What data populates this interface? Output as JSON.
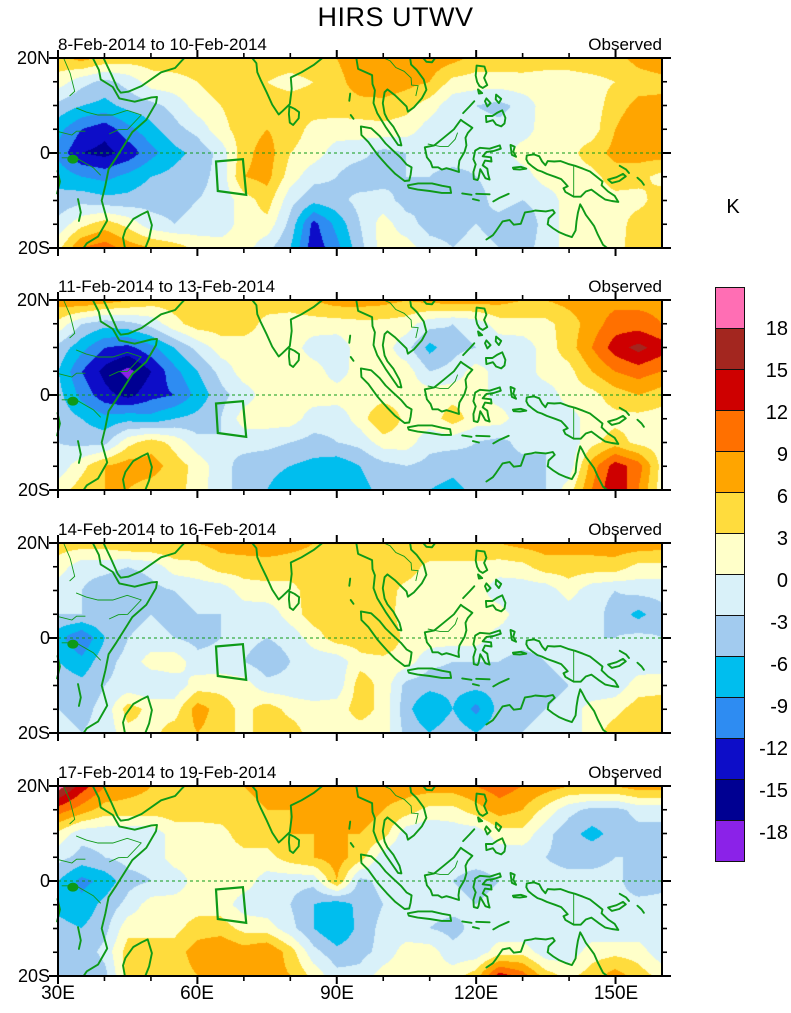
{
  "title": "HIRS UTWV",
  "panels": [
    {
      "period": "8-Feb-2014 to 10-Feb-2014",
      "source": "Observed"
    },
    {
      "period": "11-Feb-2014 to 13-Feb-2014",
      "source": "Observed"
    },
    {
      "period": "14-Feb-2014 to 16-Feb-2014",
      "source": "Observed"
    },
    {
      "period": "17-Feb-2014 to 19-Feb-2014",
      "source": "Observed"
    }
  ],
  "axes": {
    "lat_ticks": [
      "20N",
      "0",
      "20S"
    ],
    "lon_ticks": [
      "30E",
      "60E",
      "90E",
      "120E",
      "150E"
    ],
    "lon_range": [
      30,
      160
    ],
    "lat_range": [
      -20,
      20
    ]
  },
  "colorbar": {
    "unit": "K",
    "tick_labels": [
      "18",
      "15",
      "12",
      "9",
      "6",
      "3",
      "0",
      "-3",
      "-6",
      "-9",
      "-12",
      "-15",
      "-18"
    ],
    "levels": [
      18,
      15,
      12,
      9,
      6,
      3,
      0,
      -3,
      -6,
      -9,
      -12,
      -15,
      -18
    ],
    "colors_top_to_bottom": [
      "#FF6EB4",
      "#A3261F",
      "#CE0000",
      "#FF7000",
      "#FFA500",
      "#FFDC3D",
      "#FFFFC9",
      "#D9F1F9",
      "#A2CBEF",
      "#00BEEE",
      "#2E8CF2",
      "#0D0DC8",
      "#000092",
      "#8B22E8"
    ]
  },
  "highlight_box": {
    "corners_lonlat": [
      [
        64.0,
        -1.8
      ],
      [
        69.8,
        -1.3
      ],
      [
        70.5,
        -8.8
      ],
      [
        64.4,
        -8.0
      ]
    ]
  },
  "map_style": {
    "coast_color": "#0E9A18",
    "frame_color": "#000000"
  },
  "chart_data": [
    {
      "type": "heatmap",
      "title": "8-Feb-2014 to 10-Feb-2014",
      "source": "Observed",
      "units": "K",
      "contour_interval": 3,
      "lon": [
        30,
        35,
        40,
        45,
        50,
        55,
        60,
        65,
        70,
        75,
        80,
        85,
        90,
        95,
        100,
        105,
        110,
        115,
        120,
        125,
        130,
        135,
        140,
        145,
        150,
        155,
        160
      ],
      "lat": [
        20,
        15,
        10,
        5,
        0,
        -5,
        -10,
        -15,
        -20
      ],
      "values": [
        [
          5,
          7,
          5,
          4.5,
          4.5,
          4.5,
          4.5,
          4.5,
          4.5,
          4.5,
          4.5,
          5,
          6,
          8,
          9,
          8,
          8,
          7,
          5,
          5,
          4.5,
          4.5,
          4.5,
          5,
          5,
          7,
          8
        ],
        [
          1.5,
          -2,
          -4,
          -2,
          1.5,
          2,
          3,
          4.5,
          4.5,
          3,
          2,
          3,
          5,
          7.5,
          8,
          7,
          6,
          2,
          1.5,
          1.5,
          2,
          1.5,
          1.5,
          2,
          3,
          4.5,
          5
        ],
        [
          -4,
          -6,
          -7,
          -5,
          -4,
          -2,
          1.5,
          3,
          4.5,
          4.5,
          4.5,
          4.5,
          4.5,
          5,
          5,
          4,
          1.5,
          -2,
          -3,
          -4,
          -2,
          1.5,
          1.5,
          1.5,
          4.5,
          7,
          7
        ],
        [
          -8,
          -12,
          -14,
          -10,
          -7,
          -4,
          -2,
          2,
          4.5,
          6,
          4.5,
          2,
          1.5,
          1.5,
          2,
          1.5,
          -1.5,
          -2,
          -1.5,
          -2,
          -1.5,
          1.5,
          1.5,
          1.5,
          6,
          9,
          7.5
        ],
        [
          -10,
          -15,
          -16,
          -14,
          -10,
          -7,
          -5,
          -2,
          5,
          7.5,
          3,
          1.5,
          -1.5,
          -2,
          -4,
          -3,
          -2,
          -1.5,
          -2,
          -1.5,
          1.5,
          1.5,
          2,
          4.5,
          7,
          7.5,
          7.5
        ],
        [
          -7,
          -9,
          -10,
          -8,
          -6,
          -5,
          -4,
          -2,
          6,
          7,
          1.5,
          -2,
          -3,
          -5,
          -4,
          -3,
          -3,
          -4,
          -3,
          -2,
          -1.5,
          1.5,
          1.5,
          2,
          4.5,
          4,
          2
        ],
        [
          -5,
          -4,
          -5,
          -5,
          -4,
          -4,
          -3,
          -2,
          1.5,
          4.5,
          -2,
          -5,
          -4,
          -2,
          -2,
          -4,
          -3,
          -5,
          -4,
          -2,
          -3,
          -2,
          1.5,
          1.5,
          2,
          2,
          4.5
        ],
        [
          -2,
          2,
          4.5,
          2,
          -2,
          -3,
          -2,
          -2,
          1.5,
          2,
          -4,
          -13,
          -8,
          -3,
          1.5,
          -2,
          -4,
          -4,
          -3,
          -4,
          -5,
          -2,
          1.5,
          1.5,
          1.5,
          4.5,
          4.5
        ],
        [
          2,
          9,
          10.5,
          7.5,
          6,
          4.5,
          2,
          1.5,
          1.5,
          -2,
          -6,
          -14,
          -10,
          -4,
          1.5,
          1.5,
          -2,
          -3,
          -2,
          -3,
          -4,
          -2,
          1.5,
          2,
          2,
          4.5,
          4.5
        ]
      ]
    },
    {
      "type": "heatmap",
      "title": "11-Feb-2014 to 13-Feb-2014",
      "source": "Observed",
      "units": "K",
      "contour_interval": 3,
      "lon": [
        30,
        35,
        40,
        45,
        50,
        55,
        60,
        65,
        70,
        75,
        80,
        85,
        90,
        95,
        100,
        105,
        110,
        115,
        120,
        125,
        130,
        135,
        140,
        145,
        150,
        155,
        160
      ],
      "lat": [
        20,
        15,
        10,
        5,
        0,
        -5,
        -10,
        -15,
        -20
      ],
      "values": [
        [
          7.5,
          9,
          7.5,
          6,
          4.5,
          4.5,
          4.5,
          4.5,
          4.5,
          4.5,
          4.5,
          6,
          7.5,
          7.5,
          7,
          6,
          7,
          7.5,
          7.5,
          7,
          6,
          6,
          7,
          7.5,
          8,
          8,
          8
        ],
        [
          2,
          -3,
          -5,
          -4,
          -2,
          2,
          4.5,
          4.5,
          4.5,
          2,
          1.5,
          1.5,
          1.5,
          2,
          2,
          1.5,
          -2,
          -3,
          -2,
          1.5,
          2,
          2,
          4.5,
          7.5,
          10.5,
          10.5,
          9
        ],
        [
          -4,
          -8,
          -12,
          -13,
          -10,
          -6,
          -2,
          1.5,
          1.5,
          1.5,
          1.5,
          -1.5,
          -2,
          1.5,
          1.5,
          -2,
          -7,
          -4,
          -3,
          -2,
          -2,
          1.5,
          4.5,
          9,
          13.5,
          16,
          13.5
        ],
        [
          -6,
          -12,
          -16,
          -19,
          -15,
          -10,
          -6,
          -2,
          1.5,
          1.5,
          1.5,
          1.5,
          -1.5,
          1.5,
          1.5,
          1.5,
          -3,
          -2,
          1.5,
          -1.5,
          -2,
          1.5,
          2,
          6,
          9,
          10.5,
          9
        ],
        [
          -5,
          -10,
          -14,
          -16,
          -13,
          -12,
          -8,
          -4,
          -1.5,
          1.5,
          1.5,
          1.5,
          1.5,
          1.5,
          1.5,
          1.5,
          1.5,
          2,
          1.5,
          -1.5,
          -1.5,
          -2,
          1.5,
          2,
          4.5,
          6,
          4.5
        ],
        [
          -4,
          -6,
          -8,
          -7,
          -8,
          -6,
          -5,
          -3,
          1.5,
          1.5,
          1.5,
          -1.5,
          -2,
          1.5,
          6,
          2,
          1.5,
          4.5,
          1.5,
          1.5,
          -2,
          -2,
          -1.5,
          1.5,
          2,
          2,
          1.5
        ],
        [
          -3,
          -4,
          -4,
          2,
          4.5,
          2,
          -2,
          -3,
          -2,
          -2,
          -3,
          -4,
          -3,
          -2,
          1.5,
          1.5,
          -2,
          -2,
          -3,
          -4,
          -2,
          -3,
          -2,
          2,
          4.5,
          2,
          1.5
        ],
        [
          -2,
          2,
          6,
          7.5,
          7.5,
          4.5,
          2,
          -2,
          -4,
          -5,
          -6,
          -7,
          -8,
          -6,
          -4,
          -3,
          -4,
          -5,
          -4,
          -4,
          -4,
          -3,
          -2,
          7.5,
          13.5,
          10.5,
          2
        ],
        [
          1.5,
          4.5,
          6,
          6,
          4.5,
          4.5,
          1.5,
          -2,
          -4,
          -6,
          -8,
          -9,
          -8,
          -7,
          -5,
          -4,
          -6,
          -7,
          -5,
          -4,
          -4,
          -3,
          1.5,
          9,
          15,
          9,
          1.5
        ]
      ]
    },
    {
      "type": "heatmap",
      "title": "14-Feb-2014 to 16-Feb-2014",
      "source": "Observed",
      "units": "K",
      "contour_interval": 3,
      "lon": [
        30,
        35,
        40,
        45,
        50,
        55,
        60,
        65,
        70,
        75,
        80,
        85,
        90,
        95,
        100,
        105,
        110,
        115,
        120,
        125,
        130,
        135,
        140,
        145,
        150,
        155,
        160
      ],
      "lat": [
        20,
        15,
        10,
        5,
        0,
        -5,
        -10,
        -15,
        -20
      ],
      "values": [
        [
          4.5,
          4.5,
          4.5,
          6,
          6,
          6,
          6,
          7,
          7.5,
          8,
          7,
          6,
          6,
          6,
          6,
          6,
          6,
          6,
          6,
          6,
          7,
          7.5,
          7.5,
          7.5,
          8,
          8,
          7.5
        ],
        [
          1.5,
          -2,
          -2,
          -3,
          -2,
          1.5,
          2,
          4.5,
          4.5,
          4.5,
          4.5,
          4.5,
          4.5,
          4.5,
          4.5,
          4.5,
          2,
          2,
          2,
          1.5,
          2,
          4.5,
          4.5,
          4.5,
          4.5,
          2,
          2
        ],
        [
          -2,
          -3,
          -5,
          -6,
          -4,
          -3,
          -2,
          -2,
          1.5,
          2,
          2,
          4.5,
          4.5,
          4.5,
          4.5,
          2,
          1.5,
          1.5,
          1.5,
          -2,
          -2,
          -2,
          1.5,
          -2,
          -3,
          -2,
          -2
        ],
        [
          -3,
          -3,
          -3,
          -4,
          -3,
          -4,
          -3,
          -3,
          -2,
          -2,
          1.5,
          4.5,
          4.5,
          4.5,
          4.5,
          1.5,
          1.5,
          1.5,
          1.5,
          1.5,
          -2,
          -3,
          -2,
          -2,
          -4,
          -7,
          -4
        ],
        [
          -8,
          -12,
          -6,
          -3,
          -2,
          -3,
          -4,
          -3,
          -2,
          -3,
          -2,
          1.5,
          4.5,
          4.5,
          6,
          2,
          1.5,
          1.5,
          1.5,
          -1.5,
          -2,
          -2,
          -2,
          -3,
          -3,
          -2,
          -3
        ],
        [
          -6,
          -8,
          -4,
          -2,
          1.5,
          2,
          -2,
          -2,
          -3,
          -5,
          -3,
          -2,
          -2,
          2,
          2,
          1.5,
          -2,
          -3,
          -3,
          -3,
          -4,
          -3,
          -2,
          -2,
          -2,
          -2,
          -2
        ],
        [
          -4,
          -5,
          -3,
          -2,
          -3,
          -2,
          1.5,
          2,
          1.5,
          -2,
          -2,
          -3,
          -2,
          4.5,
          2,
          -4,
          -5,
          -5,
          -5,
          -5,
          -5,
          -4,
          -3,
          -3,
          -2,
          1.5,
          2
        ],
        [
          -3,
          -4,
          -2,
          4.5,
          2,
          1.5,
          7.5,
          4.5,
          2,
          4.5,
          2,
          1.5,
          1.5,
          4.5,
          2,
          -5,
          -9,
          -6,
          -10,
          -5,
          -4,
          -3,
          -2,
          1.5,
          2,
          4.5,
          4.5
        ],
        [
          -2,
          -3,
          -2,
          2,
          2,
          4.5,
          6,
          4.5,
          2,
          4.5,
          4.5,
          1.5,
          1.5,
          1.5,
          1.5,
          -4,
          -6,
          -4,
          -6,
          -4,
          -3,
          -2,
          -2,
          1.5,
          4.5,
          6,
          6
        ]
      ]
    },
    {
      "type": "heatmap",
      "title": "17-Feb-2014 to 19-Feb-2014",
      "source": "Observed",
      "units": "K",
      "contour_interval": 3,
      "lon": [
        30,
        35,
        40,
        45,
        50,
        55,
        60,
        65,
        70,
        75,
        80,
        85,
        90,
        95,
        100,
        105,
        110,
        115,
        120,
        125,
        130,
        135,
        140,
        145,
        150,
        155,
        160
      ],
      "lat": [
        20,
        15,
        10,
        5,
        0,
        -5,
        -10,
        -15,
        -20
      ],
      "values": [
        [
          19.5,
          13.5,
          9,
          7.5,
          6,
          6,
          6,
          6,
          6,
          7.5,
          7.5,
          7.5,
          9,
          9,
          7.5,
          7.5,
          7.5,
          7.5,
          9,
          10.5,
          9,
          7.5,
          6,
          6,
          6,
          7.5,
          7.5
        ],
        [
          10.5,
          7.5,
          4.5,
          4.5,
          4.5,
          4.5,
          4.5,
          4.5,
          4.5,
          6,
          6,
          7.5,
          7.5,
          7.5,
          6,
          4.5,
          2,
          2,
          4.5,
          7.5,
          6,
          2,
          -2,
          -4,
          -4,
          -2,
          -2
        ],
        [
          2,
          -2,
          -2,
          -2,
          -2,
          1.5,
          1.5,
          2,
          4.5,
          4.5,
          6,
          6,
          6,
          6,
          4.5,
          -2,
          -3,
          -2,
          -2,
          1.5,
          2,
          -2,
          -5,
          -7,
          -5,
          -4,
          -4
        ],
        [
          -2,
          -4,
          -3,
          -2,
          -2,
          1.5,
          1.5,
          1.5,
          2,
          2,
          4.5,
          6,
          7.5,
          4.5,
          -2,
          -3,
          -2,
          -2,
          -2,
          -2,
          -2,
          -3,
          -4,
          -4,
          -3,
          -3,
          -4
        ],
        [
          -6,
          -10,
          -8,
          -4,
          -3,
          -2,
          1.5,
          1.5,
          1.5,
          -1.5,
          -2,
          -2,
          6,
          -4,
          -2,
          -2,
          -2,
          -3,
          -4,
          -3,
          -3,
          -2,
          -2,
          -2,
          -2,
          -5,
          -4
        ],
        [
          -7,
          -8,
          -5,
          -2,
          1.5,
          1.5,
          1.5,
          1.5,
          -1.5,
          -2,
          -3,
          -6,
          -8,
          -5,
          -3,
          -2,
          -2,
          -2,
          -3,
          -2,
          -2,
          -2,
          -2,
          -3,
          -2,
          -2,
          -2
        ],
        [
          -5,
          -6,
          -4,
          2,
          2,
          2,
          4.5,
          4.5,
          2,
          1.5,
          -2,
          -6,
          -9,
          -5,
          -2,
          -2,
          -3,
          -4,
          -2,
          -2,
          -3,
          -2,
          -2,
          -2,
          -3,
          -2,
          -2
        ],
        [
          -4,
          -5,
          -2,
          4.5,
          4.5,
          4.5,
          7.5,
          9,
          7.5,
          9,
          4.5,
          -2,
          -5,
          -4,
          -2,
          1.5,
          1.5,
          -2,
          -2,
          1.5,
          2,
          -2,
          -2,
          1.5,
          2,
          1.5,
          -2
        ],
        [
          -3,
          -6,
          -4,
          4.5,
          6,
          4.5,
          6,
          7.5,
          6,
          7.5,
          6,
          2,
          -2,
          -2,
          1.5,
          2,
          1.5,
          1.5,
          4.5,
          13.5,
          10.5,
          4.5,
          2,
          4.5,
          7.5,
          4.5,
          2
        ]
      ]
    }
  ]
}
